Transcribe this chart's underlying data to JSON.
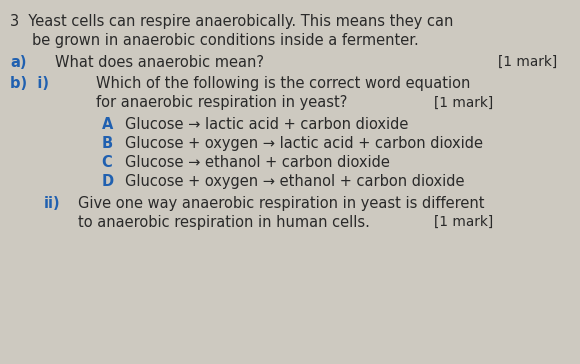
{
  "bg_color": "#cdc9c0",
  "text_color_dark": "#2a2a2a",
  "text_color_blue": "#2060b0",
  "fig_width": 5.8,
  "fig_height": 3.64,
  "dpi": 100,
  "intro_line1": "3  Yeast cells can respire anaerobically. This means they can",
  "intro_line2": "be grown in anaerobic conditions inside a fermenter.",
  "a_label": "a)",
  "a_text": "What does anaerobic mean?",
  "a_mark": "[1 mark]",
  "b_label": "b)  i)",
  "b_text1": "Which of the following is the correct word equation",
  "b_text2": "for anaerobic respiration in yeast?",
  "b_mark": "[1 mark]",
  "options": [
    {
      "letter": "A",
      "text": "Glucose → lactic acid + carbon dioxide"
    },
    {
      "letter": "B",
      "text": "Glucose + oxygen → lactic acid + carbon dioxide"
    },
    {
      "letter": "C",
      "text": "Glucose → ethanol + carbon dioxide"
    },
    {
      "letter": "D",
      "text": "Glucose + oxygen → ethanol + carbon dioxide"
    }
  ],
  "ii_label": "ii)",
  "ii_text1": "Give one way anaerobic respiration in yeast is different",
  "ii_text2": "to anaerobic respiration in human cells.",
  "ii_mark": "[1 mark]",
  "font_size_main": 10.5,
  "font_size_small": 9.8
}
